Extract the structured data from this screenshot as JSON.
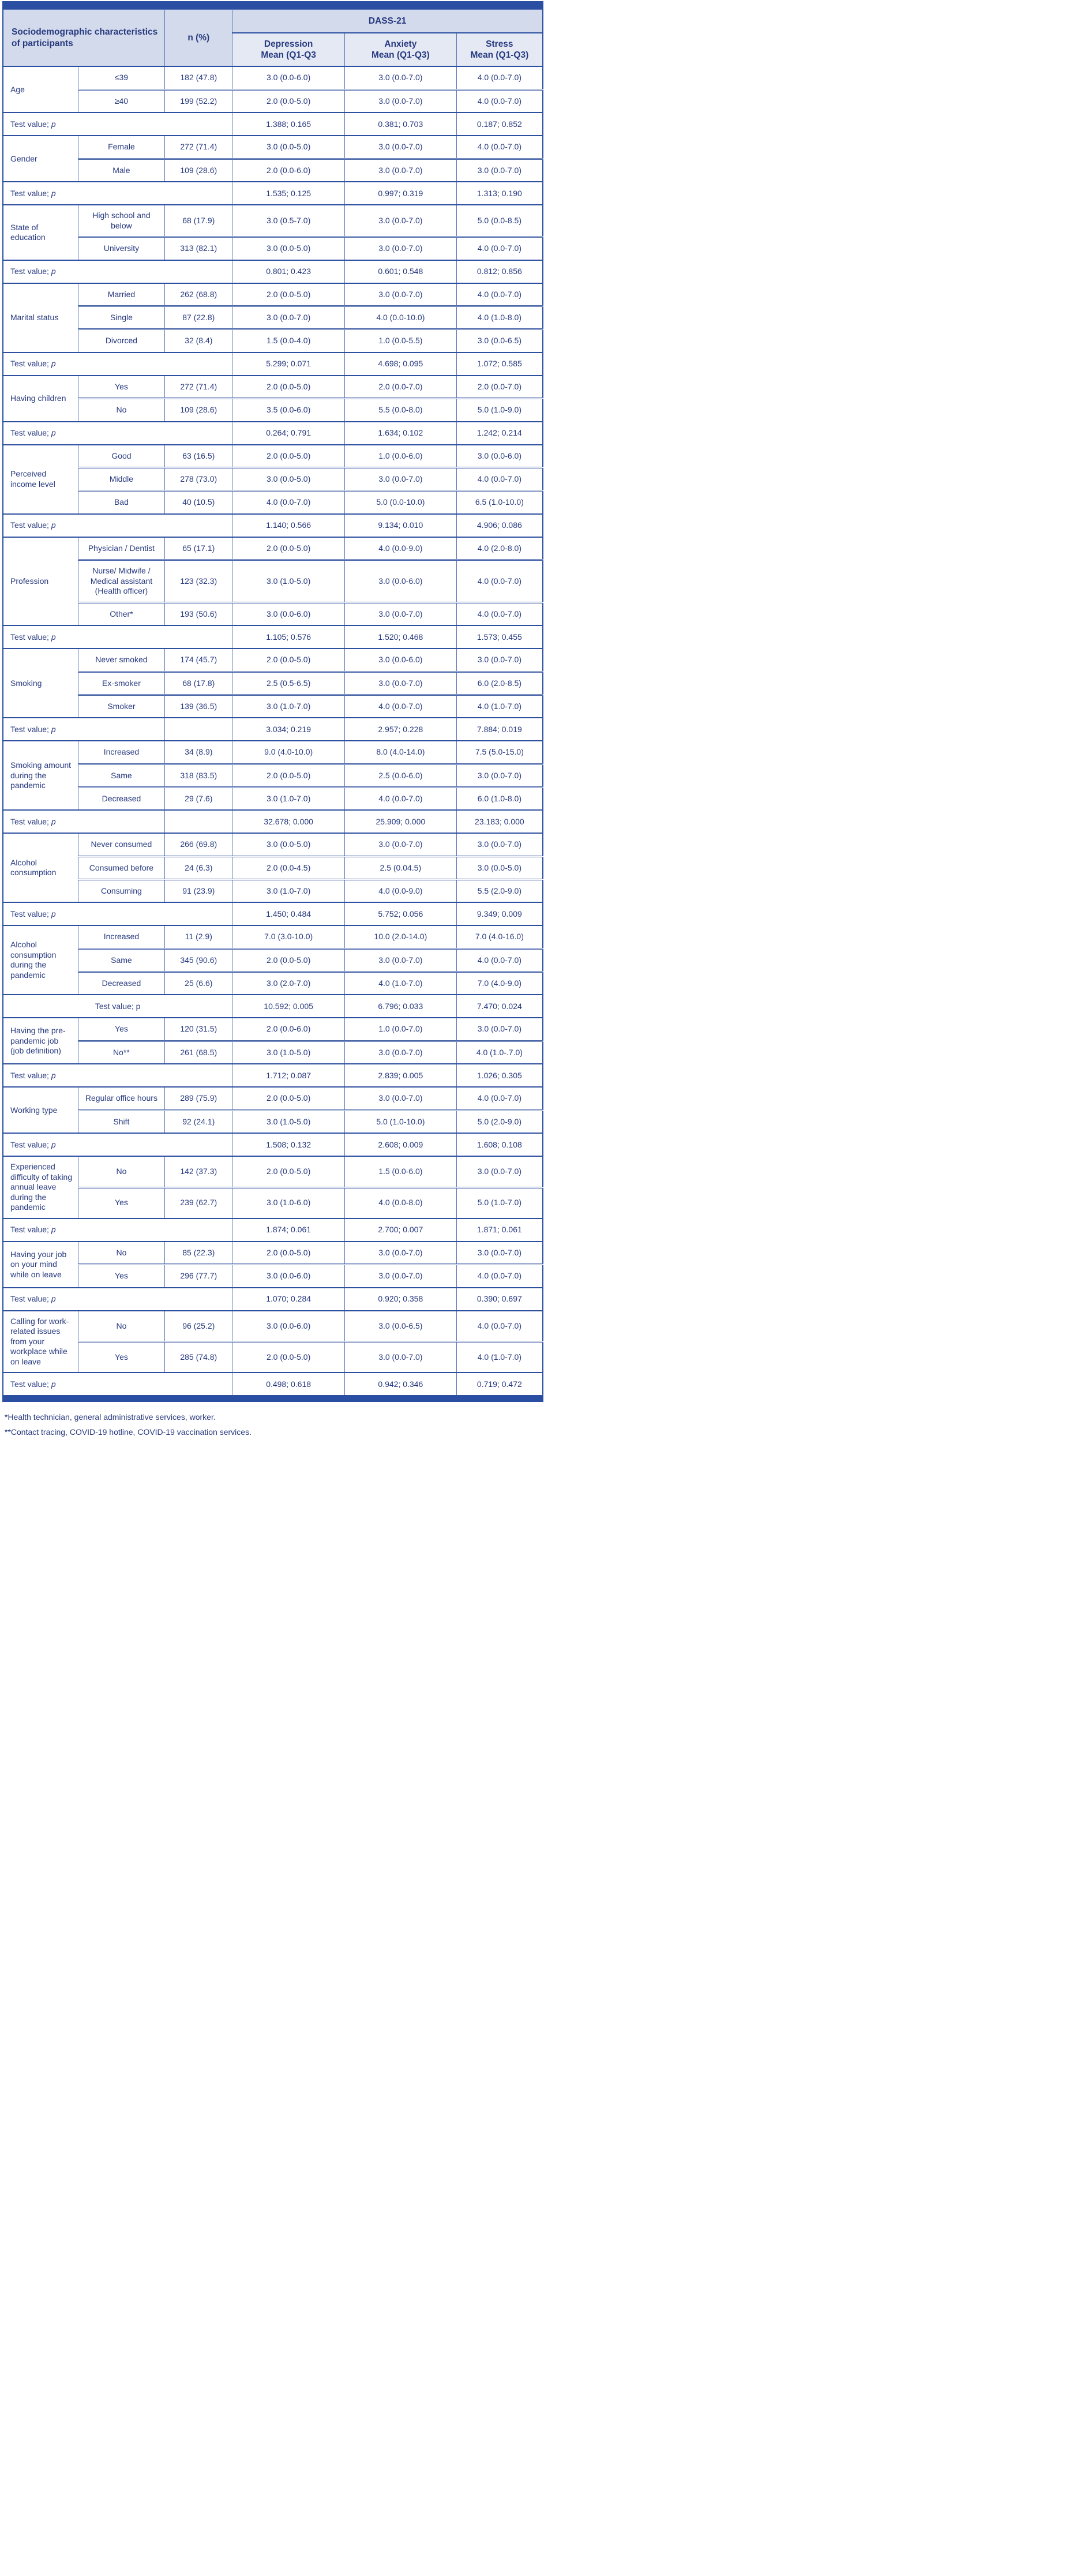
{
  "colors": {
    "bar_blue": "#2a4fa2",
    "strong_border": "#2d4f9f",
    "light_border": "#5d77b8",
    "text_navy": "#27397f",
    "header_bg_dark": "#d2daeb",
    "header_bg_light": "#e4e9f4"
  },
  "table": {
    "header": {
      "col1": "Sociodemographic characteristics of participants",
      "n_col": "n (%)",
      "group": "DASS-21",
      "sub": [
        {
          "line1": "Depression",
          "line2": "Mean (Q1-Q3"
        },
        {
          "line1": "Anxiety",
          "line2": "Mean (Q1-Q3)"
        },
        {
          "line1": "Stress",
          "line2": "Mean (Q1-Q3)"
        }
      ]
    },
    "sections": [
      {
        "category": "Age",
        "rows": [
          {
            "label": "≤39",
            "n": "182 (47.8)",
            "values": [
              "3.0 (0.0-6.0)",
              "3.0 (0.0-7.0)",
              "4.0 (0.0-7.0)"
            ]
          },
          {
            "label": "≥40",
            "n": "199 (52.2)",
            "values": [
              "2.0 (0.0-5.0)",
              "3.0 (0.0-7.0)",
              "4.0 (0.0-7.0)"
            ]
          }
        ],
        "test": {
          "prefix": "Test value;",
          "p": "p",
          "p_italic": true,
          "span": 3,
          "align": "left",
          "values": [
            "1.388; 0.165",
            "0.381; 0.703",
            "0.187; 0.852"
          ]
        }
      },
      {
        "category": "Gender",
        "rows": [
          {
            "label": "Female",
            "n": "272 (71.4)",
            "values": [
              "3.0 (0.0-5.0)",
              "3.0 (0.0-7.0)",
              "4.0 (0.0-7.0)"
            ]
          },
          {
            "label": "Male",
            "n": "109 (28.6)",
            "values": [
              "2.0 (0.0-6.0)",
              "3.0 (0.0-7.0)",
              "3.0 (0.0-7.0)"
            ]
          }
        ],
        "test": {
          "prefix": "Test value;",
          "p": "p",
          "p_italic": true,
          "span": 3,
          "align": "left",
          "values": [
            "1.535; 0.125",
            "0.997; 0.319",
            "1.313; 0.190"
          ]
        }
      },
      {
        "category": "State of education",
        "rows": [
          {
            "label": "High school and below",
            "n": "68 (17.9)",
            "values": [
              "3.0 (0.5-7.0)",
              "3.0 (0.0-7.0)",
              "5.0 (0.0-8.5)"
            ]
          },
          {
            "label": "University",
            "n": "313 (82.1)",
            "values": [
              "3.0 (0.0-5.0)",
              "3.0 (0.0-7.0)",
              "4.0 (0.0-7.0)"
            ]
          }
        ],
        "test": {
          "prefix": "Test value;",
          "p": "p",
          "p_italic": true,
          "span": 3,
          "align": "left",
          "values": [
            "0.801; 0.423",
            "0.601; 0.548",
            "0.812; 0.856"
          ]
        }
      },
      {
        "category": "Marital status",
        "rows": [
          {
            "label": "Married",
            "n": "262 (68.8)",
            "values": [
              "2.0 (0.0-5.0)",
              "3.0 (0.0-7.0)",
              "4.0 (0.0-7.0)"
            ]
          },
          {
            "label": "Single",
            "n": "87 (22.8)",
            "values": [
              "3.0 (0.0-7.0)",
              "4.0 (0.0-10.0)",
              "4.0 (1.0-8.0)"
            ]
          },
          {
            "label": "Divorced",
            "n": "32 (8.4)",
            "values": [
              "1.5 (0.0-4.0)",
              "1.0 (0.0-5.5)",
              "3.0 (0.0-6.5)"
            ]
          }
        ],
        "test": {
          "prefix": "Test value;",
          "p": "p",
          "p_italic": true,
          "span": 3,
          "align": "left",
          "values": [
            "5.299; 0.071",
            "4.698; 0.095",
            "1.072; 0.585"
          ]
        }
      },
      {
        "category": "Having children",
        "rows": [
          {
            "label": "Yes",
            "n": "272 (71.4)",
            "values": [
              "2.0 (0.0-5.0)",
              "2.0 (0.0-7.0)",
              "2.0 (0.0-7.0)"
            ]
          },
          {
            "label": "No",
            "n": "109 (28.6)",
            "values": [
              "3.5 (0.0-6.0)",
              "5.5 (0.0-8.0)",
              "5.0 (1.0-9.0)"
            ]
          }
        ],
        "test": {
          "prefix": "Test value;",
          "p": "p",
          "p_italic": true,
          "span": 3,
          "align": "left",
          "values": [
            "0.264; 0.791",
            "1.634; 0.102",
            "1.242; 0.214"
          ]
        }
      },
      {
        "category": "Perceived income level",
        "rows": [
          {
            "label": "Good",
            "n": "63 (16.5)",
            "values": [
              "2.0 (0.0-5.0)",
              "1.0 (0.0-6.0)",
              "3.0 (0.0-6.0)"
            ]
          },
          {
            "label": "Middle",
            "n": "278 (73.0)",
            "values": [
              "3.0 (0.0-5.0)",
              "3.0 (0.0-7.0)",
              "4.0 (0.0-7.0)"
            ]
          },
          {
            "label": "Bad",
            "n": "40 (10.5)",
            "values": [
              "4.0 (0.0-7.0)",
              "5.0 (0.0-10.0)",
              "6.5 (1.0-10.0)"
            ]
          }
        ],
        "test": {
          "prefix": "Test value;",
          "p": "p",
          "p_italic": true,
          "span": 3,
          "align": "left",
          "values": [
            "1.140; 0.566",
            "9.134; 0.010",
            "4.906; 0.086"
          ]
        }
      },
      {
        "category": "Profession",
        "rows": [
          {
            "label": "Physician / Dentist",
            "n": "65 (17.1)",
            "values": [
              "2.0 (0.0-5.0)",
              "4.0 (0.0-9.0)",
              "4.0 (2.0-8.0)"
            ]
          },
          {
            "label": "Nurse/ Midwife / Medical assistant (Health officer)",
            "n": "123 (32.3)",
            "values": [
              "3.0 (1.0-5.0)",
              "3.0 (0.0-6.0)",
              "4.0 (0.0-7.0)"
            ]
          },
          {
            "label": "Other*",
            "n": "193 (50.6)",
            "values": [
              "3.0 (0.0-6.0)",
              "3.0 (0.0-7.0)",
              "4.0 (0.0-7.0)"
            ]
          }
        ],
        "test": {
          "prefix": "Test value;",
          "p": "p",
          "p_italic": true,
          "span": 3,
          "align": "left",
          "values": [
            "1.105; 0.576",
            "1.520; 0.468",
            "1.573; 0.455"
          ]
        }
      },
      {
        "category": "Smoking",
        "rows": [
          {
            "label": "Never smoked",
            "n": "174 (45.7)",
            "values": [
              "2.0 (0.0-5.0)",
              "3.0 (0.0-6.0)",
              "3.0 (0.0-7.0)"
            ]
          },
          {
            "label": "Ex-smoker",
            "n": "68 (17.8)",
            "values": [
              "2.5 (0.5-6.5)",
              "3.0 (0.0-7.0)",
              "6.0 (2.0-8.5)"
            ]
          },
          {
            "label": "Smoker",
            "n": "139 (36.5)",
            "values": [
              "3.0 (1.0-7.0)",
              "4.0 (0.0-7.0)",
              "4.0 (1.0-7.0)"
            ]
          }
        ],
        "test": {
          "prefix": "Test value;",
          "p": "p",
          "p_italic": true,
          "span": 2,
          "align": "left",
          "values": [
            "3.034; 0.219",
            "2.957; 0.228",
            "7.884; 0.019"
          ]
        }
      },
      {
        "category": "Smoking amount during the pandemic",
        "rows": [
          {
            "label": "Increased",
            "n": "34 (8.9)",
            "values": [
              "9.0 (4.0-10.0)",
              "8.0 (4.0-14.0)",
              "7.5 (5.0-15.0)"
            ]
          },
          {
            "label": "Same",
            "n": "318 (83.5)",
            "values": [
              "2.0 (0.0-5.0)",
              "2.5 (0.0-6.0)",
              "3.0 (0.0-7.0)"
            ]
          },
          {
            "label": "Decreased",
            "n": "29 (7.6)",
            "values": [
              "3.0 (1.0-7.0)",
              "4.0 (0.0-7.0)",
              "6.0 (1.0-8.0)"
            ]
          }
        ],
        "test": {
          "prefix": "Test value;",
          "p": "p",
          "p_italic": true,
          "span": 2,
          "align": "left",
          "values": [
            "32.678; 0.000",
            "25.909; 0.000",
            "23.183; 0.000"
          ]
        }
      },
      {
        "category": "Alcohol consumption",
        "rows": [
          {
            "label": "Never consumed",
            "n": "266 (69.8)",
            "values": [
              "3.0 (0.0-5.0)",
              "3.0 (0.0-7.0)",
              "3.0 (0.0-7.0)"
            ]
          },
          {
            "label": "Consumed before",
            "n": "24 (6.3)",
            "values": [
              "2.0 (0.0-4.5)",
              "2.5 (0.04.5)",
              "3.0 (0.0-5.0)"
            ]
          },
          {
            "label": "Consuming",
            "n": "91 (23.9)",
            "values": [
              "3.0 (1.0-7.0)",
              "4.0 (0.0-9.0)",
              "5.5 (2.0-9.0)"
            ]
          }
        ],
        "test": {
          "prefix": "Test value;",
          "p": "p",
          "p_italic": true,
          "span": 3,
          "align": "left",
          "values": [
            "1.450; 0.484",
            "5.752; 0.056",
            "9.349; 0.009"
          ]
        }
      },
      {
        "category": "Alcohol consumption during the pandemic",
        "rows": [
          {
            "label": "Increased",
            "n": "11 (2.9)",
            "values": [
              "7.0 (3.0-10.0)",
              "10.0 (2.0-14.0)",
              "7.0 (4.0-16.0)"
            ]
          },
          {
            "label": "Same",
            "n": "345 (90.6)",
            "values": [
              "2.0 (0.0-5.0)",
              "3.0 (0.0-7.0)",
              "4.0 (0.0-7.0)"
            ]
          },
          {
            "label": "Decreased",
            "n": "25 (6.6)",
            "values": [
              "3.0 (2.0-7.0)",
              "4.0 (1.0-7.0)",
              "7.0 (4.0-9.0)"
            ]
          }
        ],
        "test": {
          "prefix": "Test value;",
          "p": "p",
          "p_italic": false,
          "span": 3,
          "align": "center",
          "values": [
            "10.592; 0.005",
            "6.796; 0.033",
            "7.470; 0.024"
          ]
        }
      },
      {
        "category": "Having the pre-pandemic job (job definition)",
        "rows": [
          {
            "label": "Yes",
            "n": "120 (31.5)",
            "values": [
              "2.0 (0.0-6.0)",
              "1.0 (0.0-7.0)",
              "3.0 (0.0-7.0)"
            ]
          },
          {
            "label": "No**",
            "n": "261 (68.5)",
            "values": [
              "3.0 (1.0-5.0)",
              "3.0 (0.0-7.0)",
              "4.0 (1.0-.7.0)"
            ]
          }
        ],
        "test": {
          "prefix": "Test value;",
          "p": "p",
          "p_italic": true,
          "span": 3,
          "align": "left",
          "values": [
            "1.712; 0.087",
            "2.839; 0.005",
            "1.026; 0.305"
          ]
        }
      },
      {
        "category": "Working type",
        "rows": [
          {
            "label": "Regular office hours",
            "n": "289 (75.9)",
            "values": [
              "2.0 (0.0-5.0)",
              "3.0 (0.0-7.0)",
              "4.0 (0.0-7.0)"
            ]
          },
          {
            "label": "Shift",
            "n": "92 (24.1)",
            "values": [
              "3.0 (1.0-5.0)",
              "5.0 (1.0-10.0)",
              "5.0 (2.0-9.0)"
            ]
          }
        ],
        "test": {
          "prefix": "Test value;",
          "p": "p",
          "p_italic": true,
          "span": 3,
          "align": "left",
          "values": [
            "1.508; 0.132",
            "2.608; 0.009",
            "1.608; 0.108"
          ]
        }
      },
      {
        "category": "Experienced difficulty of taking annual leave during the pandemic",
        "rows": [
          {
            "label": "No",
            "n": "142 (37.3)",
            "values": [
              "2.0 (0.0-5.0)",
              "1.5 (0.0-6.0)",
              "3.0 (0.0-7.0)"
            ]
          },
          {
            "label": "Yes",
            "n": "239 (62.7)",
            "values": [
              "3.0 (1.0-6.0)",
              "4.0 (0.0-8.0)",
              "5.0 (1.0-7.0)"
            ]
          }
        ],
        "test": {
          "prefix": "Test value;",
          "p": "p",
          "p_italic": true,
          "span": 3,
          "align": "left",
          "values": [
            "1.874; 0.061",
            "2.700; 0.007",
            "1.871; 0.061"
          ]
        }
      },
      {
        "category": "Having your job on your mind while on leave",
        "rows": [
          {
            "label": "No",
            "n": "85 (22.3)",
            "values": [
              "2.0 (0.0-5.0)",
              "3.0 (0.0-7.0)",
              "3.0 (0.0-7.0)"
            ]
          },
          {
            "label": "Yes",
            "n": "296 (77.7)",
            "values": [
              "3.0 (0.0-6.0)",
              "3.0 (0.0-7.0)",
              "4.0 (0.0-7.0)"
            ]
          }
        ],
        "test": {
          "prefix": "Test value;",
          "p": "p",
          "p_italic": true,
          "span": 3,
          "align": "left",
          "values": [
            "1.070; 0.284",
            "0.920; 0.358",
            "0.390; 0.697"
          ]
        }
      },
      {
        "category": "Calling for work-related issues from your workplace while on leave",
        "rows": [
          {
            "label": "No",
            "n": "96 (25.2)",
            "values": [
              "3.0 (0.0-6.0)",
              "3.0 (0.0-6.5)",
              "4.0 (0.0-7.0)"
            ]
          },
          {
            "label": "Yes",
            "n": "285 (74.8)",
            "values": [
              "2.0 (0.0-5.0)",
              "3.0 (0.0-7.0)",
              "4.0 (1.0-7.0)"
            ]
          }
        ],
        "test": {
          "prefix": "Test value;",
          "p": "p",
          "p_italic": true,
          "span": 3,
          "align": "left",
          "values": [
            "0.498; 0.618",
            "0.942; 0.346",
            "0.719; 0.472"
          ]
        }
      }
    ],
    "footnotes": [
      "*Health technician, general administrative services, worker.",
      "**Contact tracing, COVID-19 hotline, COVID-19 vaccination services."
    ]
  }
}
